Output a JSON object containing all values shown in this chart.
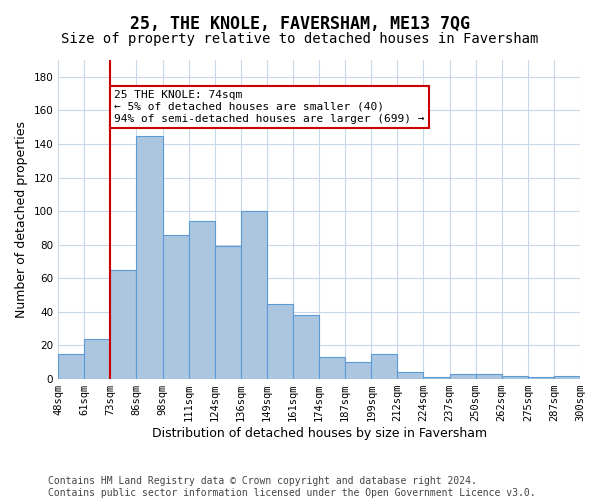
{
  "title": "25, THE KNOLE, FAVERSHAM, ME13 7QG",
  "subtitle": "Size of property relative to detached houses in Faversham",
  "xlabel": "Distribution of detached houses by size in Faversham",
  "ylabel": "Number of detached properties",
  "bin_edges": [
    "48sqm",
    "61sqm",
    "73sqm",
    "86sqm",
    "98sqm",
    "111sqm",
    "124sqm",
    "136sqm",
    "149sqm",
    "161sqm",
    "174sqm",
    "187sqm",
    "199sqm",
    "212sqm",
    "224sqm",
    "237sqm",
    "250sqm",
    "262sqm",
    "275sqm",
    "287sqm",
    "300sqm"
  ],
  "bar_values": [
    15,
    24,
    65,
    145,
    86,
    94,
    79,
    100,
    45,
    38,
    13,
    10,
    15,
    4,
    1,
    3,
    3,
    2,
    1,
    2
  ],
  "bar_color": "#adc6e0",
  "bar_edge_color": "#5b9bd5",
  "vline_pos": 1.5,
  "vline_color": "#cc0000",
  "annotation_text": "25 THE KNOLE: 74sqm\n← 5% of detached houses are smaller (40)\n94% of semi-detached houses are larger (699) →",
  "annotation_box_color": "#ffffff",
  "annotation_box_edge": "#cc0000",
  "ylim": [
    0,
    190
  ],
  "yticks": [
    0,
    20,
    40,
    60,
    80,
    100,
    120,
    140,
    160,
    180
  ],
  "footer": "Contains HM Land Registry data © Crown copyright and database right 2024.\nContains public sector information licensed under the Open Government Licence v3.0.",
  "bg_color": "#ffffff",
  "grid_color": "#c8d8e8",
  "title_fontsize": 12,
  "subtitle_fontsize": 10,
  "xlabel_fontsize": 9,
  "ylabel_fontsize": 9,
  "tick_fontsize": 7.5,
  "annotation_fontsize": 8,
  "footer_fontsize": 7
}
